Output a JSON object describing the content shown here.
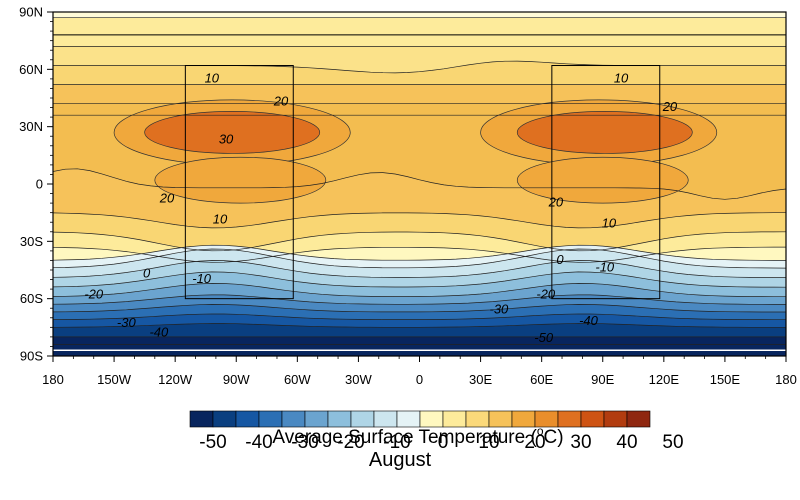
{
  "map": {
    "lat_ticks": [
      "90N",
      "60N",
      "30N",
      "0",
      "30S",
      "60S",
      "90S"
    ],
    "lon_ticks": [
      "180",
      "150W",
      "120W",
      "90W",
      "60W",
      "30W",
      "0",
      "30E",
      "60E",
      "90E",
      "120E",
      "150E",
      "180"
    ],
    "contour_labels": [
      {
        "text": "10",
        "lon": -102,
        "lat": 55
      },
      {
        "text": "20",
        "lon": -68,
        "lat": 43
      },
      {
        "text": "30",
        "lon": -95,
        "lat": 23
      },
      {
        "text": "20",
        "lon": -124,
        "lat": -8
      },
      {
        "text": "10",
        "lon": -98,
        "lat": -19
      },
      {
        "text": "0",
        "lon": -134,
        "lat": -47
      },
      {
        "text": "-10",
        "lon": -107,
        "lat": -50
      },
      {
        "text": "-20",
        "lon": -160,
        "lat": -58
      },
      {
        "text": "-30",
        "lon": -144,
        "lat": -73
      },
      {
        "text": "-40",
        "lon": -128,
        "lat": -78
      },
      {
        "text": "-30",
        "lon": 39,
        "lat": -66
      },
      {
        "text": "-50",
        "lon": 61,
        "lat": -81
      },
      {
        "text": "10",
        "lon": 99,
        "lat": 55
      },
      {
        "text": "20",
        "lon": 123,
        "lat": 40
      },
      {
        "text": "20",
        "lon": 67,
        "lat": -10
      },
      {
        "text": "10",
        "lon": 93,
        "lat": -21
      },
      {
        "text": "0",
        "lon": 69,
        "lat": -40
      },
      {
        "text": "-10",
        "lon": 91,
        "lat": -44
      },
      {
        "text": "-20",
        "lon": 62,
        "lat": -58
      },
      {
        "text": "-40",
        "lon": 83,
        "lat": -72
      }
    ],
    "boxes": [
      {
        "lon_min": -115,
        "lon_max": -62,
        "lat_min": -60,
        "lat_max": 62
      },
      {
        "lon_min": 65,
        "lon_max": 118,
        "lat_min": -60,
        "lat_max": 62
      }
    ]
  },
  "colorbar": {
    "colors": [
      "#08255e",
      "#0a3f80",
      "#1657a3",
      "#2b6fb4",
      "#4a89c2",
      "#6ba4cf",
      "#8dbfdc",
      "#afd5e6",
      "#cde6ef",
      "#e5f3f6",
      "#fff8c0",
      "#fdeb9b",
      "#fbd97a",
      "#f6c25a",
      "#f0a83c",
      "#e98e2b",
      "#df7020",
      "#ce5313",
      "#b23c0f",
      "#8f2710"
    ],
    "labels": [
      "-50",
      "-40",
      "-30",
      "-20",
      "-10",
      "0",
      "10",
      "20",
      "30",
      "40",
      "50"
    ],
    "title_main": "Average Surface Temperature (",
    "title_deg": "o",
    "title_unit": "C)",
    "subtitle": "August"
  }
}
